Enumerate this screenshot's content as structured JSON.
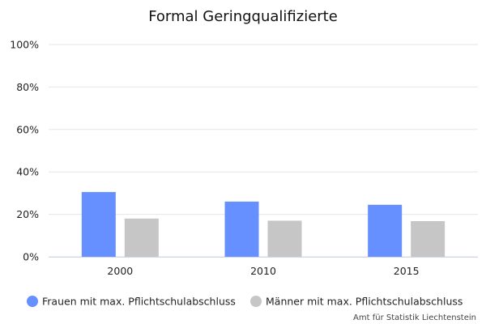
{
  "chart_data": {
    "type": "bar",
    "title": "Formal Geringqualifizierte",
    "categories": [
      "2000",
      "2010",
      "2015"
    ],
    "series": [
      {
        "name": "Frauen mit max. Pflichtschulabschluss",
        "color": "#6690ff",
        "values": [
          30.5,
          26,
          24.5
        ]
      },
      {
        "name": "Männer mit max. Pflichtschulabschluss",
        "color": "#c6c6c6",
        "values": [
          18,
          17,
          16.8
        ]
      }
    ],
    "ylim": [
      0,
      100
    ],
    "yticks": [
      "0%",
      "20%",
      "40%",
      "60%",
      "80%",
      "100%"
    ],
    "grid": true,
    "legend_position": "bottom"
  },
  "credit": "Amt für Statistik Liechtenstein"
}
